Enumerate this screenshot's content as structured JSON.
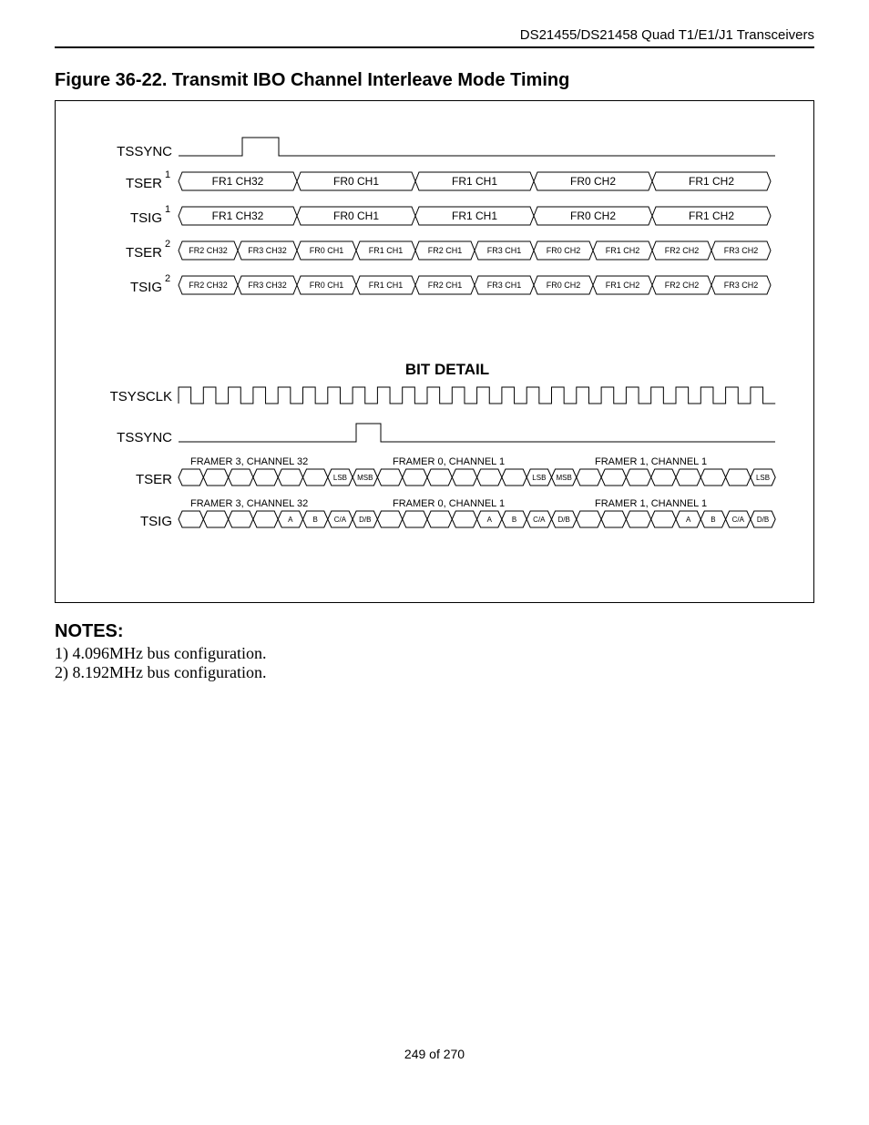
{
  "header": "DS21455/DS21458 Quad T1/E1/J1 Transceivers",
  "figure_title": "Figure 36-22. Transmit IBO Channel Interleave Mode Timing",
  "notes_title": "NOTES:",
  "notes": [
    "1)  4.096MHz bus configuration.",
    "2)  8.192MHz bus configuration."
  ],
  "footer": "249 of 270",
  "diagram": {
    "bit_detail_title": "BIT DETAIL",
    "signals_top": {
      "tssync": "TSSYNC",
      "tser": {
        "name": "TSER",
        "sup": "1"
      },
      "tsig": {
        "name": "TSIG",
        "sup": "1"
      },
      "tser2": {
        "name": "TSER",
        "sup": "2"
      },
      "tsig2": {
        "name": "TSIG",
        "sup": "2"
      }
    },
    "row5": [
      "FR1 CH32",
      "FR0 CH1",
      "FR1 CH1",
      "FR0 CH2",
      "FR1 CH2"
    ],
    "row10": [
      "FR2 CH32",
      "FR3 CH32",
      "FR0 CH1",
      "FR1 CH1",
      "FR2 CH1",
      "FR3 CH1",
      "FR0 CH2",
      "FR1 CH2",
      "FR2 CH2",
      "FR3 CH2"
    ],
    "signals_bottom": {
      "tsysclk": "TSYSCLK",
      "tssync": "TSSYNC",
      "tser": "TSER",
      "tsig": "TSIG"
    },
    "framer_labels": [
      "FRAMER 3, CHANNEL 32",
      "FRAMER 0, CHANNEL 1",
      "FRAMER 1, CHANNEL 1"
    ],
    "bit_labels": {
      "lsb": "LSB",
      "msb": "MSB",
      "a": "A",
      "b": "B",
      "ca": "C/A",
      "db": "D/B"
    }
  }
}
